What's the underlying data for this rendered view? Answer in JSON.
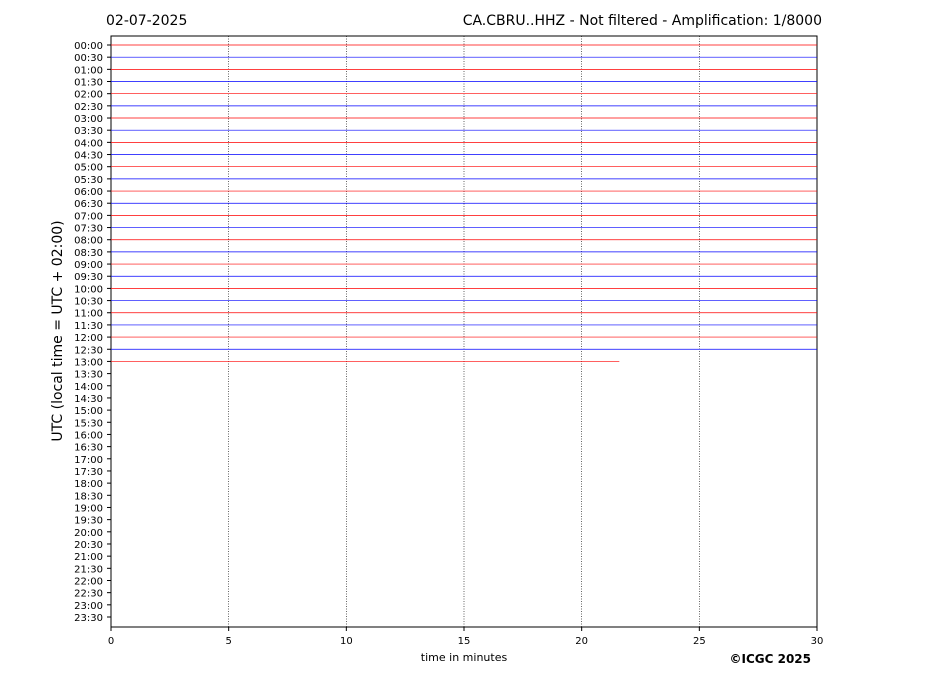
{
  "chart_data": {
    "type": "helicorder",
    "title": "CA.CBRU..HHZ - Not filtered - Amplification: 1/8000",
    "date": "02-07-2025",
    "xlabel": "time in minutes",
    "ylabel": "UTC (local time = UTC + 02:00)",
    "credit": "©ICGC 2025",
    "categories": [
      "00:00",
      "00:30",
      "01:00",
      "01:30",
      "02:00",
      "02:30",
      "03:00",
      "03:30",
      "04:00",
      "04:30",
      "05:00",
      "05:30",
      "06:00",
      "06:30",
      "07:00",
      "07:30",
      "08:00",
      "08:30",
      "09:00",
      "09:30",
      "10:00",
      "10:30",
      "11:00",
      "11:30",
      "12:00",
      "12:30",
      "13:00",
      "13:30",
      "14:00",
      "14:30",
      "15:00",
      "15:30",
      "16:00",
      "16:30",
      "17:00",
      "17:30",
      "18:00",
      "18:30",
      "19:00",
      "19:30",
      "20:00",
      "20:30",
      "21:00",
      "21:30",
      "22:00",
      "22:30",
      "23:00",
      "23:30"
    ],
    "values": [
      30,
      30,
      30,
      30,
      30,
      30,
      30,
      30,
      30,
      30,
      30,
      30,
      30,
      30,
      30,
      30,
      30,
      30,
      30,
      30,
      30,
      30,
      30,
      30,
      30,
      30,
      21.6,
      null,
      null,
      null,
      null,
      null,
      null,
      null,
      null,
      null,
      null,
      null,
      null,
      null,
      null,
      null,
      null,
      null,
      null,
      null,
      null,
      null
    ],
    "colors": [
      "#ff0000",
      "#0000ff"
    ],
    "xlim": [
      0,
      30
    ],
    "xticks": [
      0,
      5,
      10,
      15,
      20,
      25,
      30
    ],
    "grid": true
  }
}
